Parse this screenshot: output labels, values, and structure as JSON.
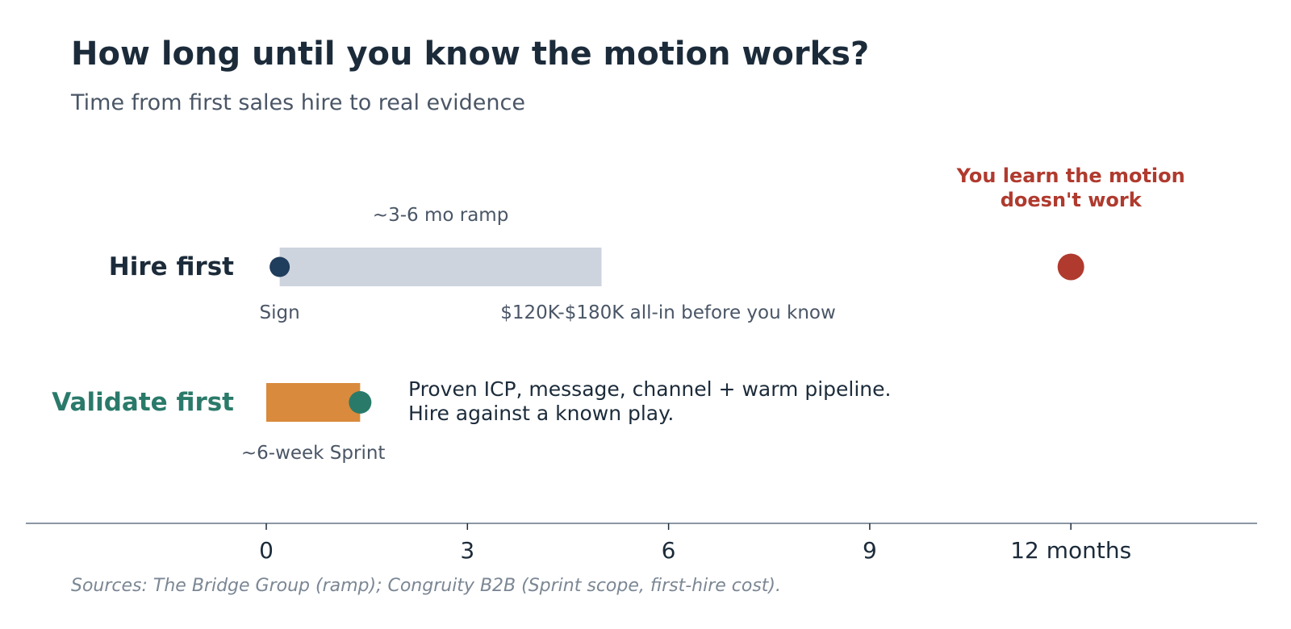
{
  "header": {
    "title": "How long until you know the motion works?",
    "subtitle": "Time from first sales hire to real evidence"
  },
  "source": "Sources: The Bridge Group (ramp); Congruity B2B (Sprint scope, first-hire cost).",
  "colors": {
    "dark": "#1c2b3a",
    "muted": "#4a5666",
    "ramp_bar": "#cdd4de",
    "sign_dot": "#1f3d5c",
    "fail": "#b03a2e",
    "sprint_bar": "#d98a3c",
    "validate": "#2a7a6a",
    "axis": "#8a96a3"
  },
  "chart_data": {
    "type": "timeline",
    "title": "How long until you know the motion works?",
    "subtitle": "Time from first sales hire to real evidence",
    "x_axis": {
      "range": [
        -3,
        15
      ],
      "ticks": [
        0,
        3,
        6,
        9,
        12
      ],
      "tick_labels": [
        "0",
        "3",
        "6",
        "9",
        "12 months"
      ]
    },
    "rows": [
      {
        "label": "Hire first",
        "bar": {
          "start": 0.2,
          "end": 5.0,
          "label": "~3-6 mo ramp"
        },
        "start_marker": {
          "x": 0.2,
          "label": "Sign"
        },
        "end_marker": {
          "x": 12,
          "label": "You learn the motion doesn't work"
        },
        "cost_note": "$120K-$180K all-in before you know"
      },
      {
        "label": "Validate first",
        "bar": {
          "start": 0,
          "end": 1.4,
          "label": "~6-week Sprint"
        },
        "end_marker": {
          "x": 1.4
        },
        "note_lines": [
          "Proven ICP, message, channel + warm pipeline.",
          "Hire against a known play."
        ]
      }
    ]
  }
}
